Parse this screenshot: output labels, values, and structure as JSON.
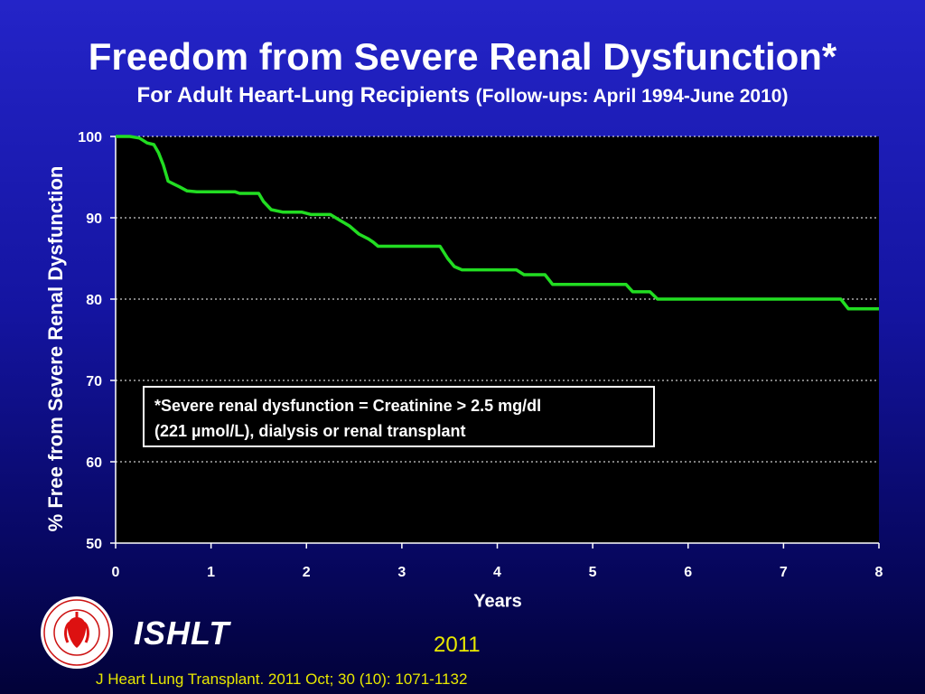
{
  "slide": {
    "title": "Freedom from Severe Renal Dysfunction*",
    "subtitle_main": "For Adult Heart-Lung Recipients",
    "subtitle_followup": "(Follow-ups: April 1994-June 2010)",
    "note_line1": "*Severe renal dysfunction = Creatinine > 2.5 mg/dl",
    "note_line2": "(221 µmol/L), dialysis or renal transplant",
    "brand": "ISHLT",
    "year": "2011",
    "citation": "J Heart Lung Transplant. 2011 Oct; 30 (10): 1071-1132",
    "logo_icon": "ishlt-seal-icon",
    "colors": {
      "curve": "#22dd22",
      "accent_text": "#e8e800",
      "plot_background": "#000000",
      "slide_background": "#1414a0"
    }
  },
  "chart_data": {
    "type": "line",
    "xlabel": "Years",
    "ylabel": "% Free from Severe Renal Dysfunction",
    "xlim": [
      0,
      8
    ],
    "ylim": [
      50,
      100
    ],
    "x_ticks": [
      0,
      1,
      2,
      3,
      4,
      5,
      6,
      7,
      8
    ],
    "y_ticks": [
      50,
      60,
      70,
      80,
      90,
      100
    ],
    "grid": "horizontal-dotted",
    "series": [
      {
        "x": [
          0,
          0.15,
          0.25,
          0.33,
          0.4,
          0.45,
          0.5,
          0.55,
          0.6,
          0.67,
          0.75,
          0.85,
          1.0,
          1.25,
          1.3,
          1.5,
          1.55,
          1.63,
          1.75,
          1.95,
          2.05,
          2.25,
          2.35,
          2.45,
          2.55,
          2.65,
          2.7,
          2.75,
          3.4,
          3.48,
          3.55,
          3.63,
          4.2,
          4.28,
          4.5,
          4.58,
          5.35,
          5.42,
          5.6,
          5.68,
          7.6,
          7.68,
          8.0
        ],
        "y": [
          100,
          100,
          99.8,
          99.2,
          99.0,
          98.0,
          96.5,
          94.5,
          94.2,
          93.8,
          93.3,
          93.2,
          93.2,
          93.2,
          93.0,
          93.0,
          92.0,
          91.0,
          90.7,
          90.7,
          90.4,
          90.4,
          89.7,
          89.0,
          88.0,
          87.4,
          87.0,
          86.5,
          86.5,
          85.0,
          84.0,
          83.6,
          83.6,
          83.0,
          83.0,
          81.8,
          81.8,
          80.9,
          80.9,
          80.0,
          80.0,
          78.8,
          78.8
        ]
      }
    ]
  }
}
